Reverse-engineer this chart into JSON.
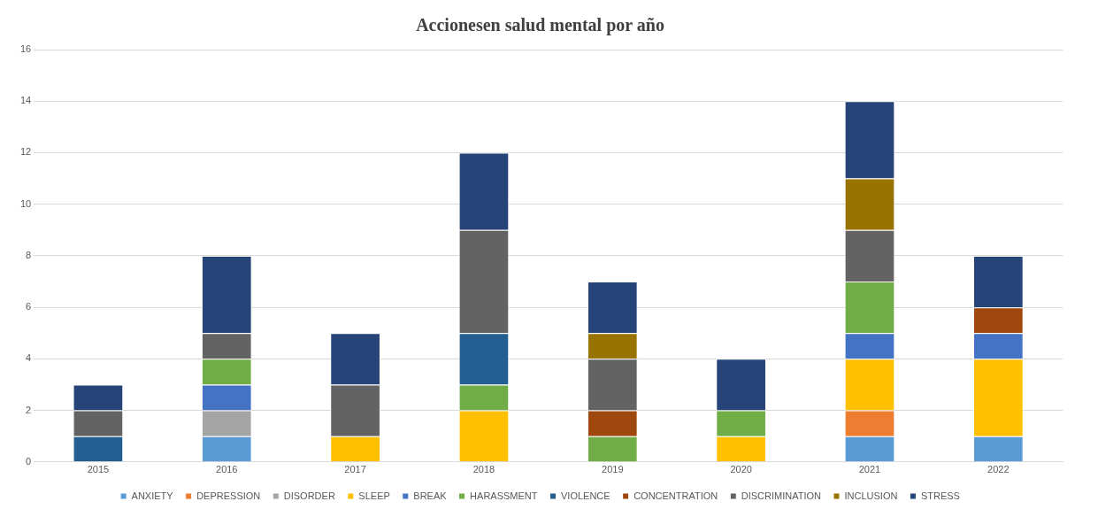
{
  "chart_data": {
    "type": "bar",
    "title": "Accionesen salud mental por año",
    "stacked": true,
    "grid": "y",
    "legend": "bottom",
    "ylim": [
      0,
      16
    ],
    "yticks": [
      0,
      2,
      4,
      6,
      8,
      10,
      12,
      14,
      16
    ],
    "categories": [
      "2015",
      "2016",
      "2017",
      "2018",
      "2019",
      "2020",
      "2021",
      "2022"
    ],
    "series": [
      {
        "name": "ANXIETY",
        "color": "#5b9bd5",
        "values": [
          0,
          1,
          0,
          0,
          0,
          0,
          1,
          1
        ]
      },
      {
        "name": "DEPRESSION",
        "color": "#ed7d31",
        "values": [
          0,
          0,
          0,
          0,
          0,
          0,
          1,
          0
        ]
      },
      {
        "name": "DISORDER",
        "color": "#a5a5a5",
        "values": [
          0,
          1,
          0,
          0,
          0,
          0,
          0,
          0
        ]
      },
      {
        "name": "SLEEP",
        "color": "#ffc000",
        "values": [
          0,
          0,
          1,
          2,
          0,
          1,
          2,
          3
        ]
      },
      {
        "name": "BREAK",
        "color": "#4472c4",
        "values": [
          0,
          1,
          0,
          0,
          0,
          0,
          1,
          1
        ]
      },
      {
        "name": "HARASSMENT",
        "color": "#70ad47",
        "values": [
          0,
          1,
          0,
          1,
          1,
          1,
          2,
          0
        ]
      },
      {
        "name": "VIOLENCE",
        "color": "#255e91",
        "values": [
          1,
          0,
          0,
          2,
          0,
          0,
          0,
          0
        ]
      },
      {
        "name": "CONCENTRATION",
        "color": "#9e480e",
        "values": [
          0,
          0,
          0,
          0,
          1,
          0,
          0,
          1
        ]
      },
      {
        "name": "DISCRIMINATION",
        "color": "#636363",
        "values": [
          1,
          1,
          2,
          4,
          2,
          0,
          2,
          0
        ]
      },
      {
        "name": "INCLUSION",
        "color": "#997300",
        "values": [
          0,
          0,
          0,
          0,
          1,
          0,
          2,
          0
        ]
      },
      {
        "name": "STRESS",
        "color": "#264478",
        "values": [
          1,
          3,
          2,
          3,
          2,
          2,
          3,
          2
        ]
      }
    ]
  }
}
